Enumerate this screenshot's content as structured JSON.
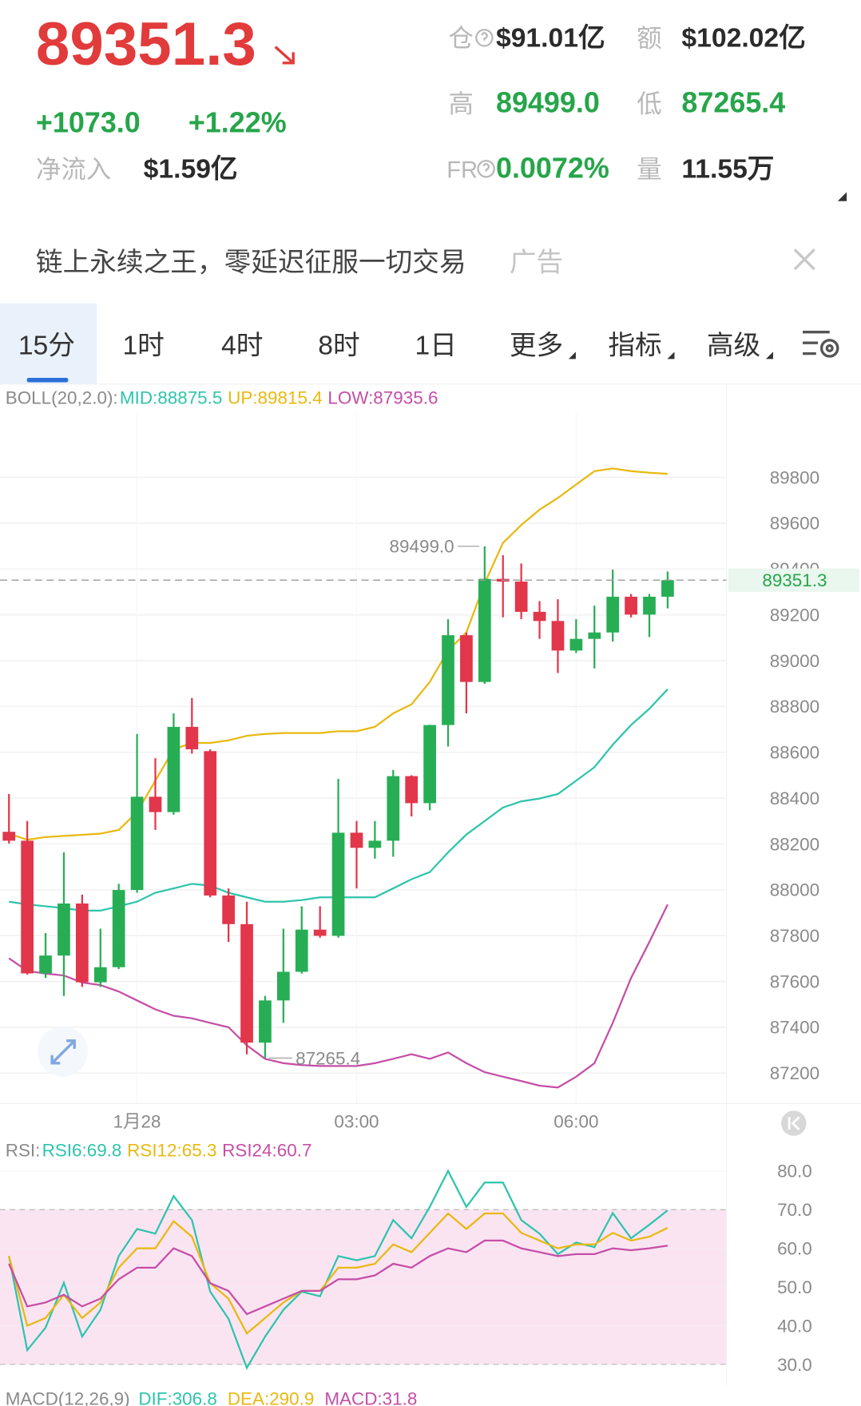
{
  "header": {
    "price": "89351.3",
    "change": "+1073.0",
    "change_pct": "+1.22%",
    "net_inflow_label": "净流入",
    "net_inflow": "$1.59亿",
    "open_interest_label": "仓",
    "open_interest": "$91.01亿",
    "turnover_label": "额",
    "turnover": "$102.02亿",
    "high_label": "高",
    "high": "89499.0",
    "low_label": "低",
    "low": "87265.4",
    "fr_label": "FR",
    "fr": "0.0072%",
    "volume_label": "量",
    "volume": "11.55万"
  },
  "ad": {
    "text": "链上永续之王，零延迟征服一切交易",
    "tag": "广告"
  },
  "tabs": [
    "15分",
    "1时",
    "4时",
    "8时",
    "1日",
    "更多",
    "指标",
    "高级"
  ],
  "chart_data": [
    {
      "type": "candlestick",
      "legend_title": "BOLL(20,2.0):",
      "categories": [
        null,
        null,
        null,
        null,
        null,
        null,
        null,
        "1月28",
        null,
        null,
        null,
        null,
        null,
        null,
        null,
        null,
        null,
        null,
        null,
        "03:00",
        null,
        null,
        null,
        null,
        null,
        null,
        null,
        null,
        null,
        null,
        null,
        "06:00",
        null,
        null,
        null,
        null,
        null
      ],
      "open": [
        88253,
        88214,
        87635,
        87713,
        87940,
        87596,
        87662,
        87999,
        88406,
        88339,
        88711,
        88605,
        87975,
        87850,
        87333,
        87517,
        87642,
        87826,
        87799,
        88249,
        88183,
        88214,
        88496,
        88378,
        88719,
        89111,
        88907,
        89357,
        89345,
        89213,
        89173,
        89044,
        89095,
        89123,
        89279,
        89201,
        89279
      ],
      "high": [
        88418,
        88300,
        87811,
        88163,
        87979,
        87830,
        88026,
        88680,
        88574,
        88770,
        88837,
        88613,
        88006,
        87948,
        87537,
        87830,
        87928,
        87928,
        88484,
        88300,
        88300,
        88523,
        88500,
        88720,
        89181,
        89123,
        89499,
        89460,
        89424,
        89260,
        89268,
        89181,
        89240,
        89397,
        89291,
        89291,
        89389
      ],
      "low": [
        88202,
        87630,
        87615,
        87537,
        87576,
        87576,
        87654,
        87987,
        88261,
        88328,
        88594,
        87967,
        87772,
        87282,
        87265.4,
        87419,
        87634,
        87791,
        87791,
        88006,
        88136,
        88144,
        88320,
        88347,
        88625,
        88770,
        88899,
        89189,
        89181,
        89095,
        88946,
        89033,
        88966,
        89083,
        89189,
        89103,
        89228
      ],
      "close": [
        88214,
        87635,
        87713,
        87940,
        87596,
        87662,
        87999,
        88406,
        88339,
        88711,
        88613,
        87975,
        87850,
        87333,
        87517,
        87642,
        87826,
        87799,
        88249,
        88183,
        88214,
        88496,
        88378,
        88719,
        89111,
        88907,
        89357,
        89345,
        89213,
        89173,
        89044,
        89095,
        89123,
        89279,
        89201,
        89279,
        89351.3
      ],
      "up_color": "#27ae55",
      "down_color": "#e2364b",
      "series": [
        {
          "label": "MID:88875.5",
          "color": "#2ec4ac",
          "values": [
            87948,
            87936,
            87928,
            87920,
            87909,
            87909,
            87928,
            87948,
            87987,
            88006,
            88026,
            88018,
            87987,
            87967,
            87948,
            87948,
            87955,
            87967,
            87967,
            87967,
            87967,
            88006,
            88046,
            88077,
            88163,
            88241,
            88300,
            88359,
            88386,
            88398,
            88418,
            88476,
            88535,
            88633,
            88719,
            88790,
            88875.5
          ]
        },
        {
          "label": "UP:89815.4",
          "color": "#e8b910",
          "values": [
            88245,
            88218,
            88230,
            88235,
            88240,
            88245,
            88261,
            88339,
            88476,
            88613,
            88641,
            88641,
            88652,
            88672,
            88680,
            88684,
            88684,
            88684,
            88692,
            88692,
            88711,
            88770,
            88809,
            88907,
            89044,
            89123,
            89338,
            89514,
            89592,
            89659,
            89710,
            89769,
            89827,
            89839,
            89827,
            89820,
            89815.4
          ]
        },
        {
          "label": "LOW:87935.6",
          "color": "#c54ea6",
          "values": [
            87701,
            87646,
            87634,
            87626,
            87595,
            87584,
            87556,
            87517,
            87478,
            87450,
            87439,
            87419,
            87400,
            87321,
            87262,
            87243,
            87235,
            87231,
            87231,
            87231,
            87243,
            87262,
            87282,
            87262,
            87290,
            87243,
            87204,
            87184,
            87165,
            87145,
            87137,
            87184,
            87243,
            87419,
            87615,
            87772,
            87935.6
          ]
        }
      ],
      "ylim": [
        87067,
        90160
      ],
      "yticks": [
        87200,
        87400,
        87600,
        87800,
        88000,
        88200,
        88400,
        88600,
        88800,
        89000,
        89200,
        89400,
        89600,
        89800
      ],
      "grid": true,
      "last_price": 89351.3,
      "max_annotation": {
        "value": 89499,
        "label": "89499.0"
      },
      "min_annotation": 87265.4
    },
    {
      "type": "line",
      "legend_title": "RSI:",
      "series": [
        {
          "label": "RSI6:69.8",
          "color": "#2ec4ac",
          "values": [
            58.0,
            33.7,
            39.5,
            51.1,
            37.2,
            44.1,
            58.0,
            65.0,
            63.8,
            73.5,
            67.3,
            48.8,
            41.8,
            29.1,
            37.2,
            44.1,
            48.8,
            47.6,
            58.0,
            56.9,
            58.0,
            67.3,
            62.6,
            70.7,
            80.0,
            70.7,
            77.0,
            77.0,
            67.3,
            63.8,
            58.5,
            61.5,
            60.3,
            69.1,
            62.6,
            66.1,
            69.8
          ]
        },
        {
          "label": "RSI12:65.3",
          "color": "#e8b910",
          "values": [
            58,
            40,
            42,
            48,
            42,
            46,
            55,
            60,
            60,
            67,
            63,
            51,
            47,
            38,
            42,
            46,
            49,
            49,
            55,
            55,
            56,
            61,
            59,
            64,
            69,
            65,
            69,
            69,
            64,
            62,
            60,
            61,
            61,
            64,
            62,
            63,
            65.3
          ]
        },
        {
          "label": "RSI24:60.7",
          "color": "#c54ea6",
          "values": [
            56,
            45,
            46,
            48,
            45,
            47,
            52,
            55,
            55,
            60,
            58,
            51,
            49,
            43,
            45,
            47,
            49,
            49,
            52,
            52,
            53,
            56,
            55,
            58,
            60,
            59,
            62,
            62,
            60,
            59,
            58,
            58.5,
            58.5,
            60,
            59.5,
            60,
            60.7
          ]
        }
      ],
      "ylim": [
        24.4,
        83.5
      ],
      "yticks": [
        {
          "value": 80,
          "label": "80.0"
        },
        {
          "value": 70,
          "label": "70.0"
        },
        {
          "value": 60,
          "label": "60.0"
        },
        {
          "value": 50,
          "label": "50.0"
        },
        {
          "value": 40,
          "label": "40.0"
        },
        {
          "value": 30,
          "label": "30.0"
        }
      ],
      "band": [
        30,
        70
      ]
    }
  ],
  "macd_legend": {
    "title": "MACD(12,26,9)",
    "items": [
      "DIF:306.8",
      "DEA:290.9",
      "MACD:31.8"
    ]
  }
}
